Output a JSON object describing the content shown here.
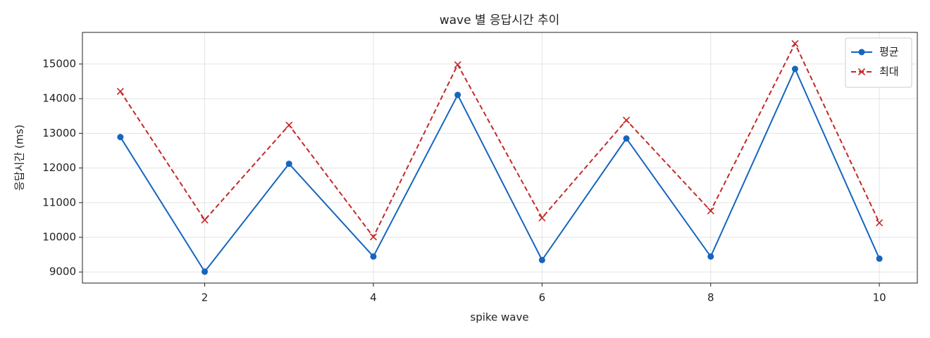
{
  "chart_data": {
    "type": "line",
    "title": "wave 별 응답시간 추이",
    "x_label": "spike wave",
    "y_label": "응답시간 (ms)",
    "x": [
      1,
      2,
      3,
      4,
      5,
      6,
      7,
      8,
      9,
      10
    ],
    "series": [
      {
        "name": "평균",
        "color": "#1565c0",
        "marker": "o",
        "linestyle": "solid",
        "values": [
          12892,
          9010,
          12122,
          9446,
          14108,
          9345,
          12852,
          9446,
          14858,
          9385
        ]
      },
      {
        "name": "최대",
        "color": "#c62828",
        "marker": "x",
        "linestyle": "dashed",
        "values": [
          14210,
          10500,
          13237,
          10013,
          14980,
          10561,
          13379,
          10764,
          15588,
          10419
        ]
      }
    ],
    "xlim": [
      0.55,
      10.45
    ],
    "xticks": [
      2,
      4,
      6,
      8,
      10
    ],
    "ylim": [
      8680,
      15912
    ],
    "yticks": [
      9000,
      10000,
      11000,
      12000,
      13000,
      14000,
      15000
    ],
    "grid": true,
    "legend": "upper right"
  }
}
